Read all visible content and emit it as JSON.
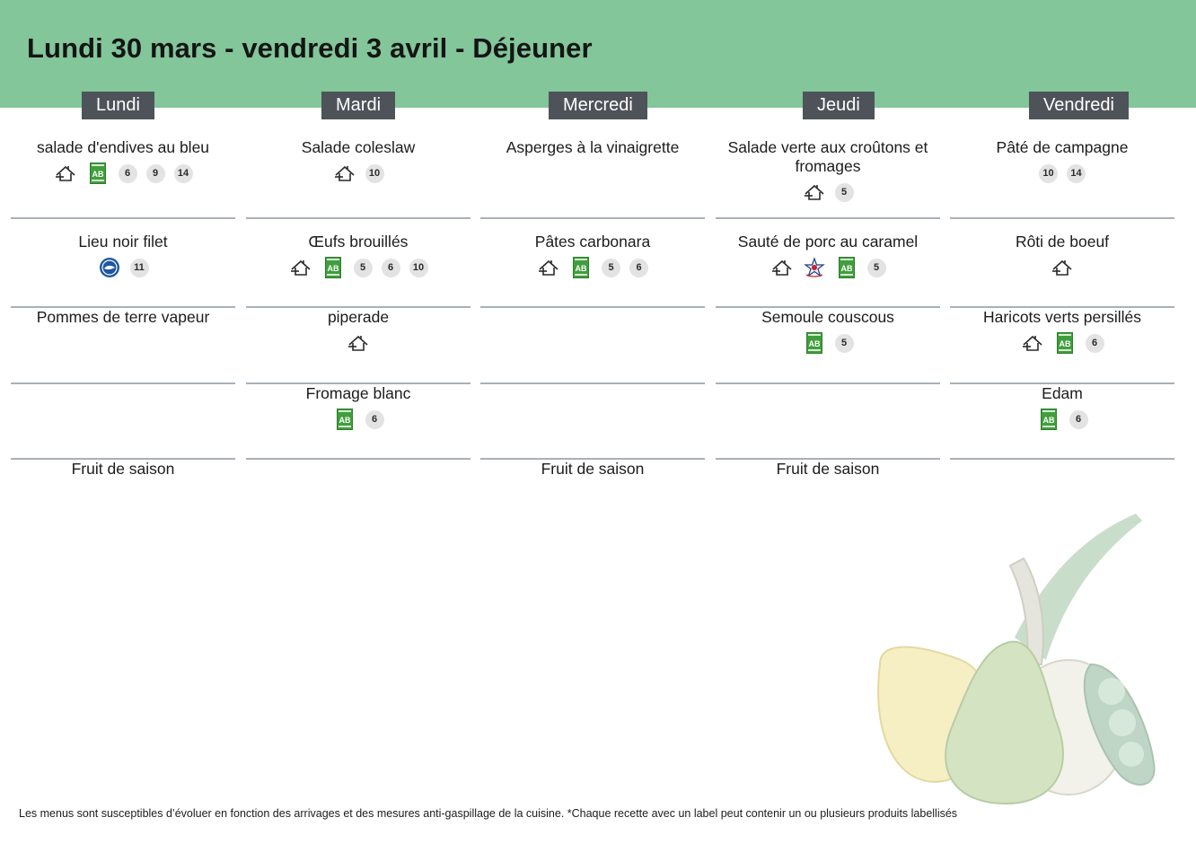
{
  "title": "Lundi 30 mars - vendredi 3 avril  - Déjeuner",
  "days": [
    {
      "name": "Lundi",
      "slots": [
        {
          "dish": "salade d'endives au bleu",
          "labels": [
            "fait-maison-icon",
            "ab-bio-icon"
          ],
          "allergens": [
            "6",
            "9",
            "14"
          ]
        },
        {
          "dish": "Lieu noir filet",
          "labels": [
            "msc-peche-durable-icon"
          ],
          "allergens": [
            "11"
          ]
        },
        {
          "dish": "Pommes de terre vapeur",
          "labels": [],
          "allergens": []
        },
        {
          "dish": "",
          "labels": [],
          "allergens": []
        },
        {
          "dish": "Fruit de saison",
          "labels": [],
          "allergens": []
        }
      ]
    },
    {
      "name": "Mardi",
      "slots": [
        {
          "dish": "Salade coleslaw",
          "labels": [
            "fait-maison-icon"
          ],
          "allergens": [
            "10"
          ]
        },
        {
          "dish": "Œufs brouillés",
          "labels": [
            "fait-maison-icon",
            "ab-bio-icon"
          ],
          "allergens": [
            "5",
            "6",
            "10"
          ]
        },
        {
          "dish": "piperade",
          "labels": [
            "fait-maison-icon"
          ],
          "allergens": []
        },
        {
          "dish": "Fromage blanc",
          "labels": [
            "ab-bio-icon"
          ],
          "allergens": [
            "6"
          ]
        },
        {
          "dish": "",
          "labels": [],
          "allergens": []
        }
      ]
    },
    {
      "name": "Mercredi",
      "slots": [
        {
          "dish": "Asperges à la vinaigrette",
          "labels": [],
          "allergens": []
        },
        {
          "dish": "Pâtes carbonara",
          "labels": [
            "fait-maison-icon",
            "ab-bio-icon"
          ],
          "allergens": [
            "5",
            "6"
          ]
        },
        {
          "dish": "",
          "labels": [],
          "allergens": []
        },
        {
          "dish": "",
          "labels": [],
          "allergens": []
        },
        {
          "dish": "Fruit de saison",
          "labels": [],
          "allergens": []
        }
      ]
    },
    {
      "name": "Jeudi",
      "slots": [
        {
          "dish": "Salade verte aux croûtons et fromages",
          "labels": [
            "fait-maison-icon"
          ],
          "allergens": [
            "5"
          ]
        },
        {
          "dish": "Sauté de porc au caramel",
          "labels": [
            "fait-maison-icon",
            "label-rouge-icon",
            "ab-bio-icon"
          ],
          "allergens": [
            "5"
          ]
        },
        {
          "dish": "Semoule couscous",
          "labels": [
            "ab-bio-icon"
          ],
          "allergens": [
            "5"
          ]
        },
        {
          "dish": "",
          "labels": [],
          "allergens": []
        },
        {
          "dish": "Fruit de saison",
          "labels": [],
          "allergens": []
        }
      ]
    },
    {
      "name": "Vendredi",
      "slots": [
        {
          "dish": "Pâté de campagne",
          "labels": [],
          "allergens": [
            "10",
            "14"
          ]
        },
        {
          "dish": "Rôti de boeuf",
          "labels": [
            "fait-maison-icon"
          ],
          "allergens": []
        },
        {
          "dish": "Haricots verts persillés",
          "labels": [
            "fait-maison-icon",
            "ab-bio-icon"
          ],
          "allergens": [
            "6"
          ]
        },
        {
          "dish": "Edam",
          "labels": [
            "ab-bio-icon"
          ],
          "allergens": [
            "6"
          ]
        },
        {
          "dish": "",
          "labels": [],
          "allergens": []
        }
      ]
    }
  ],
  "footer": "Les menus sont susceptibles d’évoluer en fonction des arrivages et des mesures anti-gaspillage de la cuisine. *Chaque recette avec un label peut contenir un ou plusieurs produits labellisés",
  "colors": {
    "header": "#82c69a",
    "day_header": "#4e5359",
    "separator": "#a9b0b8",
    "badge": "#e3e3e3",
    "bio_green": "#3f9f3c"
  },
  "decoration": "fruits-vegetables-illustration"
}
